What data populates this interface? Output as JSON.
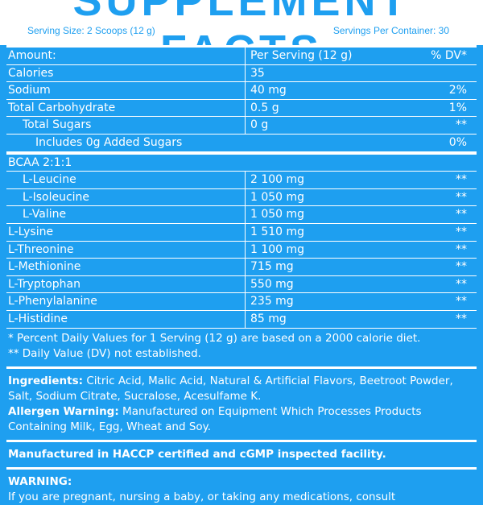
{
  "title": "SUPPLEMENT FACTS",
  "serving_size": "Serving Size: 2 Scoops (12 g)",
  "servings_per_container": "Servings Per Container: 30",
  "header": {
    "amount": "Amount:",
    "per_serving": "Per Serving (12 g)",
    "dv": "% DV*"
  },
  "rows": [
    {
      "name": "Calories",
      "amount": "35",
      "dv": ""
    },
    {
      "name": "Sodium",
      "amount": "40 mg",
      "dv": "2%"
    },
    {
      "name": "Total Carbohydrate",
      "amount": "0.5 g",
      "dv": "1%"
    },
    {
      "name": "Total Sugars",
      "amount": "0 g",
      "dv": "**"
    },
    {
      "name": "Includes 0g Added Sugars",
      "amount": "",
      "dv": "0%"
    }
  ],
  "bcaa_label": "BCAA 2:1:1",
  "bcaa_rows": [
    {
      "name": "L-Leucine",
      "amount": "2 100 mg",
      "dv": "**"
    },
    {
      "name": "L-Isoleucine",
      "amount": "1 050 mg",
      "dv": "**"
    },
    {
      "name": "L-Valine",
      "amount": "1 050 mg",
      "dv": "**"
    }
  ],
  "amino_rows": [
    {
      "name": "L-Lysine",
      "amount": "1 510 mg",
      "dv": "**"
    },
    {
      "name": "L-Threonine",
      "amount": "1 100 mg",
      "dv": "**"
    },
    {
      "name": "L-Methionine",
      "amount": "715 mg",
      "dv": "**"
    },
    {
      "name": "L-Tryptophan",
      "amount": "550 mg",
      "dv": "**"
    },
    {
      "name": "L-Phenylalanine",
      "amount": "235 mg",
      "dv": "**"
    },
    {
      "name": "L-Histidine",
      "amount": "85 mg",
      "dv": "**"
    }
  ],
  "footnote1": "* Percent Daily Values for 1 Serving (12 g) are based on a 2000 calorie diet.",
  "footnote2": "** Daily Value (DV) not established.",
  "ingredients_label": "Ingredients:",
  "ingredients_text": " Citric Acid, Malic Acid, Natural & Artificial Flavors, Beetroot Powder, Salt, Sodium Citrate, Sucralose, Acesulfame K.",
  "allergen_label": "Allergen Warning:",
  "allergen_text": " Manufactured on Equipment Which Processes Products Containing Milk, Egg, Wheat and Soy.",
  "manufactured": "Manufactured in HACCP certified and cGMP inspected facility.",
  "warning_label": "WARNING:",
  "warning_text": "If you are pregnant, nursing a baby, or taking any medications, consult"
}
